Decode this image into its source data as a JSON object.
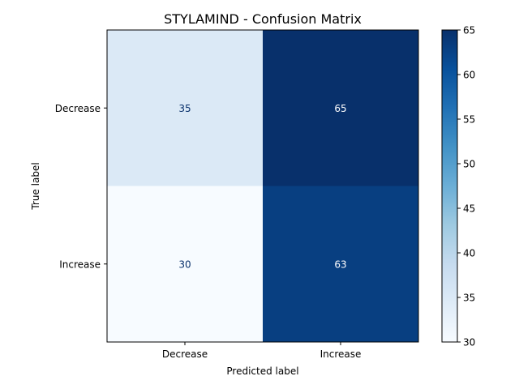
{
  "chart_data": {
    "type": "heatmap",
    "title": "STYLAMIND - Confusion Matrix",
    "xlabel": "Predicted label",
    "ylabel": "True label",
    "x_categories": [
      "Decrease",
      "Increase"
    ],
    "y_categories": [
      "Decrease",
      "Increase"
    ],
    "values": [
      [
        35,
        65
      ],
      [
        30,
        63
      ]
    ],
    "colormap": "Blues",
    "colorbar": {
      "range": [
        30,
        65
      ],
      "ticks": [
        "30",
        "35",
        "40",
        "45",
        "50",
        "55",
        "60",
        "65"
      ]
    },
    "colors": {
      "min": "#f7fbff",
      "max": "#08306b",
      "text_dark": "#08306b",
      "text_light": "#ffffff"
    }
  }
}
